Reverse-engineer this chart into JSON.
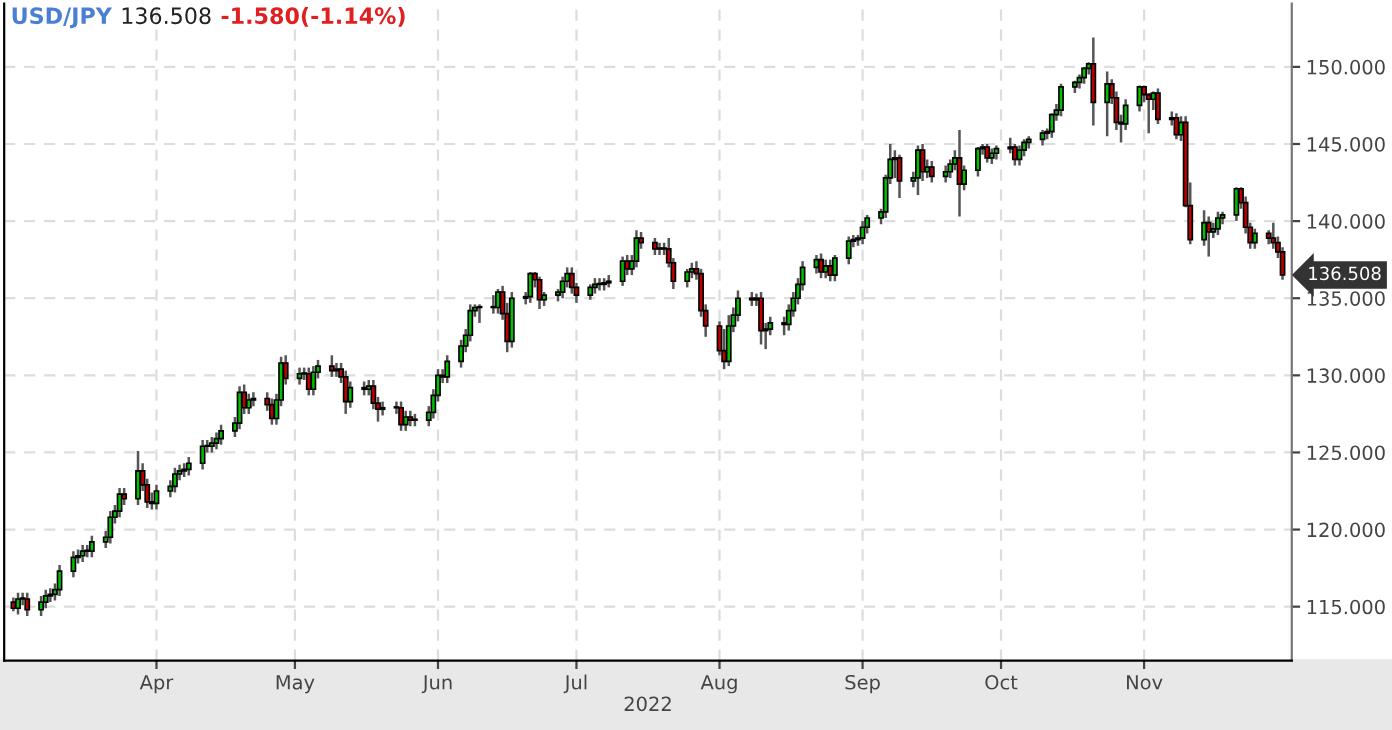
{
  "chart_data": {
    "type": "candlestick",
    "title": "USD/JPY",
    "annotations": [
      "136.508",
      "-1.580(-1.14%)",
      {
        "text": "136.508",
        "x": "2022-12-01",
        "y": 136.508
      }
    ],
    "xlabel": "2022",
    "grid": true,
    "legend": false,
    "xlim": [
      "2022-02-27",
      "2022-12-03"
    ],
    "xticks": [
      {
        "value": "2022-04-01",
        "label": "Apr"
      },
      {
        "value": "2022-05-01",
        "label": "May"
      },
      {
        "value": "2022-06-01",
        "label": "Jun"
      },
      {
        "value": "2022-07-01",
        "label": "Jul"
      },
      {
        "value": "2022-08-01",
        "label": "Aug"
      },
      {
        "value": "2022-09-01",
        "label": "Sep"
      },
      {
        "value": "2022-10-01",
        "label": "Oct"
      },
      {
        "value": "2022-11-01",
        "label": "Nov"
      }
    ],
    "ylim": [
      111.5,
      154.1
    ],
    "yticks": [
      {
        "value": 115,
        "label": "115.000"
      },
      {
        "value": 120,
        "label": "120.000"
      },
      {
        "value": 125,
        "label": "125.000"
      },
      {
        "value": 130,
        "label": "130.000"
      },
      {
        "value": 135,
        "label": "135.000"
      },
      {
        "value": 140,
        "label": "140.000"
      },
      {
        "value": 145,
        "label": "145.000"
      },
      {
        "value": 150,
        "label": "150.000"
      }
    ],
    "x": [
      "2022-03-01",
      "2022-03-02",
      "2022-03-03",
      "2022-03-04",
      "2022-03-07",
      "2022-03-08",
      "2022-03-09",
      "2022-03-10",
      "2022-03-11",
      "2022-03-14",
      "2022-03-15",
      "2022-03-16",
      "2022-03-17",
      "2022-03-18",
      "2022-03-21",
      "2022-03-22",
      "2022-03-23",
      "2022-03-24",
      "2022-03-25",
      "2022-03-28",
      "2022-03-29",
      "2022-03-30",
      "2022-03-31",
      "2022-04-01",
      "2022-04-04",
      "2022-04-05",
      "2022-04-06",
      "2022-04-07",
      "2022-04-08",
      "2022-04-11",
      "2022-04-12",
      "2022-04-13",
      "2022-04-14",
      "2022-04-15",
      "2022-04-18",
      "2022-04-19",
      "2022-04-20",
      "2022-04-21",
      "2022-04-22",
      "2022-04-25",
      "2022-04-26",
      "2022-04-27",
      "2022-04-28",
      "2022-04-29",
      "2022-05-02",
      "2022-05-03",
      "2022-05-04",
      "2022-05-05",
      "2022-05-06",
      "2022-05-09",
      "2022-05-10",
      "2022-05-11",
      "2022-05-12",
      "2022-05-13",
      "2022-05-16",
      "2022-05-17",
      "2022-05-18",
      "2022-05-19",
      "2022-05-20",
      "2022-05-23",
      "2022-05-24",
      "2022-05-25",
      "2022-05-26",
      "2022-05-27",
      "2022-05-30",
      "2022-05-31",
      "2022-06-01",
      "2022-06-02",
      "2022-06-03",
      "2022-06-06",
      "2022-06-07",
      "2022-06-08",
      "2022-06-09",
      "2022-06-10",
      "2022-06-13",
      "2022-06-14",
      "2022-06-15",
      "2022-06-16",
      "2022-06-17",
      "2022-06-20",
      "2022-06-21",
      "2022-06-22",
      "2022-06-23",
      "2022-06-24",
      "2022-06-27",
      "2022-06-28",
      "2022-06-29",
      "2022-06-30",
      "2022-07-01",
      "2022-07-04",
      "2022-07-05",
      "2022-07-06",
      "2022-07-07",
      "2022-07-08",
      "2022-07-11",
      "2022-07-12",
      "2022-07-13",
      "2022-07-14",
      "2022-07-15",
      "2022-07-18",
      "2022-07-19",
      "2022-07-20",
      "2022-07-21",
      "2022-07-22",
      "2022-07-25",
      "2022-07-26",
      "2022-07-27",
      "2022-07-28",
      "2022-07-29",
      "2022-08-01",
      "2022-08-02",
      "2022-08-03",
      "2022-08-04",
      "2022-08-05",
      "2022-08-08",
      "2022-08-09",
      "2022-08-10",
      "2022-08-11",
      "2022-08-12",
      "2022-08-15",
      "2022-08-16",
      "2022-08-17",
      "2022-08-18",
      "2022-08-19",
      "2022-08-22",
      "2022-08-23",
      "2022-08-24",
      "2022-08-25",
      "2022-08-26",
      "2022-08-29",
      "2022-08-30",
      "2022-08-31",
      "2022-09-01",
      "2022-09-02",
      "2022-09-05",
      "2022-09-06",
      "2022-09-07",
      "2022-09-08",
      "2022-09-09",
      "2022-09-12",
      "2022-09-13",
      "2022-09-14",
      "2022-09-15",
      "2022-09-16",
      "2022-09-19",
      "2022-09-20",
      "2022-09-21",
      "2022-09-22",
      "2022-09-23",
      "2022-09-26",
      "2022-09-27",
      "2022-09-28",
      "2022-09-29",
      "2022-09-30",
      "2022-10-03",
      "2022-10-04",
      "2022-10-05",
      "2022-10-06",
      "2022-10-07",
      "2022-10-10",
      "2022-10-11",
      "2022-10-12",
      "2022-10-13",
      "2022-10-14",
      "2022-10-17",
      "2022-10-18",
      "2022-10-19",
      "2022-10-20",
      "2022-10-21",
      "2022-10-24",
      "2022-10-25",
      "2022-10-26",
      "2022-10-27",
      "2022-10-28",
      "2022-10-31",
      "2022-11-01",
      "2022-11-02",
      "2022-11-03",
      "2022-11-04",
      "2022-11-07",
      "2022-11-08",
      "2022-11-09",
      "2022-11-10",
      "2022-11-11",
      "2022-11-14",
      "2022-11-15",
      "2022-11-16",
      "2022-11-17",
      "2022-11-18",
      "2022-11-21",
      "2022-11-22",
      "2022-11-23",
      "2022-11-24",
      "2022-11-25",
      "2022-11-28",
      "2022-11-29",
      "2022-11-30",
      "2022-12-01"
    ],
    "ohlc": [
      [
        115.3,
        115.6,
        114.7,
        114.9
      ],
      [
        114.9,
        115.9,
        114.5,
        115.5
      ],
      [
        115.5,
        115.9,
        115.1,
        115.5
      ],
      [
        115.5,
        115.9,
        114.4,
        114.8
      ],
      [
        114.8,
        115.7,
        114.4,
        115.3
      ],
      [
        115.3,
        116.1,
        114.9,
        115.7
      ],
      [
        115.7,
        116.2,
        115.3,
        115.8
      ],
      [
        115.8,
        116.5,
        115.4,
        116.1
      ],
      [
        116.1,
        117.7,
        115.7,
        117.3
      ],
      [
        117.3,
        118.6,
        116.9,
        118.2
      ],
      [
        118.2,
        118.7,
        117.8,
        118.3
      ],
      [
        118.3,
        119.0,
        117.9,
        118.6
      ],
      [
        118.6,
        119.0,
        118.2,
        118.6
      ],
      [
        118.6,
        119.6,
        118.2,
        119.2
      ],
      [
        119.2,
        119.9,
        118.8,
        119.5
      ],
      [
        119.5,
        121.2,
        119.1,
        120.8
      ],
      [
        120.8,
        121.6,
        120.4,
        121.2
      ],
      [
        121.2,
        122.7,
        120.8,
        122.3
      ],
      [
        122.3,
        122.7,
        121.6,
        122.0
      ],
      [
        122.0,
        125.1,
        121.6,
        123.8
      ],
      [
        123.8,
        124.3,
        122.5,
        122.9
      ],
      [
        122.9,
        123.3,
        121.4,
        121.8
      ],
      [
        121.8,
        122.4,
        121.3,
        121.7
      ],
      [
        121.7,
        122.9,
        121.3,
        122.5
      ],
      [
        122.5,
        123.2,
        122.1,
        122.8
      ],
      [
        122.8,
        124.0,
        122.4,
        123.6
      ],
      [
        123.6,
        124.2,
        123.2,
        123.8
      ],
      [
        123.8,
        124.3,
        123.4,
        123.9
      ],
      [
        123.9,
        124.7,
        123.5,
        124.3
      ],
      [
        124.3,
        125.8,
        123.9,
        125.4
      ],
      [
        125.4,
        125.8,
        125.0,
        125.4
      ],
      [
        125.4,
        126.0,
        125.0,
        125.6
      ],
      [
        125.6,
        126.3,
        125.2,
        125.9
      ],
      [
        125.9,
        126.8,
        125.5,
        126.4
      ],
      [
        126.4,
        127.3,
        126.0,
        126.9
      ],
      [
        126.9,
        129.3,
        126.5,
        128.9
      ],
      [
        128.9,
        129.4,
        127.5,
        127.9
      ],
      [
        127.9,
        128.8,
        127.5,
        128.4
      ],
      [
        128.4,
        128.9,
        128.0,
        128.5
      ],
      [
        128.5,
        128.9,
        127.7,
        128.1
      ],
      [
        128.1,
        128.5,
        126.8,
        127.2
      ],
      [
        127.2,
        128.8,
        126.8,
        128.4
      ],
      [
        128.4,
        131.2,
        128.0,
        130.8
      ],
      [
        130.8,
        131.3,
        129.4,
        129.8
      ],
      [
        129.8,
        130.5,
        129.4,
        130.1
      ],
      [
        130.1,
        130.5,
        129.7,
        130.1
      ],
      [
        130.1,
        130.5,
        128.7,
        129.1
      ],
      [
        129.1,
        130.6,
        128.7,
        130.2
      ],
      [
        130.2,
        131.0,
        129.8,
        130.6
      ],
      [
        130.6,
        131.3,
        129.9,
        130.3
      ],
      [
        130.3,
        130.8,
        129.9,
        130.4
      ],
      [
        130.4,
        130.8,
        129.5,
        129.9
      ],
      [
        129.9,
        130.3,
        127.5,
        128.3
      ],
      [
        128.3,
        129.6,
        127.9,
        129.2
      ],
      [
        129.2,
        129.6,
        128.7,
        129.1
      ],
      [
        129.1,
        129.7,
        128.7,
        129.3
      ],
      [
        129.3,
        129.7,
        127.8,
        128.2
      ],
      [
        128.2,
        128.6,
        127.0,
        127.8
      ],
      [
        127.8,
        128.3,
        127.4,
        127.9
      ],
      [
        127.9,
        128.3,
        127.5,
        127.9
      ],
      [
        127.9,
        128.3,
        126.4,
        126.8
      ],
      [
        126.8,
        127.7,
        126.4,
        127.3
      ],
      [
        127.3,
        127.7,
        126.7,
        127.1
      ],
      [
        127.1,
        127.5,
        126.7,
        127.1
      ],
      [
        127.1,
        128.0,
        126.7,
        127.6
      ],
      [
        127.6,
        129.1,
        127.2,
        128.7
      ],
      [
        128.7,
        130.4,
        128.3,
        130.0
      ],
      [
        130.0,
        130.4,
        129.5,
        129.9
      ],
      [
        129.9,
        131.3,
        129.5,
        130.9
      ],
      [
        130.9,
        132.3,
        130.5,
        131.9
      ],
      [
        131.9,
        133.0,
        131.5,
        132.6
      ],
      [
        132.6,
        134.6,
        132.2,
        134.2
      ],
      [
        134.2,
        134.6,
        133.8,
        134.4
      ],
      [
        134.4,
        134.6,
        133.4,
        134.4
      ],
      [
        134.4,
        135.2,
        134.0,
        134.4
      ],
      [
        134.4,
        135.6,
        134.0,
        135.4
      ],
      [
        135.4,
        135.8,
        133.6,
        134.0
      ],
      [
        134.0,
        134.7,
        131.5,
        132.2
      ],
      [
        132.2,
        135.4,
        131.8,
        135.0
      ],
      [
        135.0,
        135.4,
        134.6,
        135.1
      ],
      [
        135.1,
        136.7,
        134.7,
        136.6
      ],
      [
        136.6,
        136.7,
        135.7,
        136.2
      ],
      [
        136.2,
        136.4,
        134.3,
        134.9
      ],
      [
        134.9,
        135.4,
        134.5,
        135.2
      ],
      [
        135.2,
        135.6,
        134.8,
        135.4
      ],
      [
        135.4,
        136.4,
        135.0,
        136.1
      ],
      [
        136.1,
        137.0,
        135.7,
        136.6
      ],
      [
        136.6,
        137.0,
        135.3,
        135.7
      ],
      [
        135.7,
        136.0,
        134.7,
        135.2
      ],
      [
        135.2,
        135.9,
        134.9,
        135.7
      ],
      [
        135.7,
        136.3,
        135.3,
        135.9
      ],
      [
        135.9,
        136.3,
        135.5,
        135.9
      ],
      [
        135.9,
        136.3,
        135.5,
        136.0
      ],
      [
        136.0,
        136.5,
        135.7,
        136.1
      ],
      [
        136.1,
        137.7,
        135.8,
        137.4
      ],
      [
        137.4,
        137.8,
        136.5,
        136.9
      ],
      [
        136.9,
        137.8,
        136.5,
        137.4
      ],
      [
        137.4,
        139.4,
        137.0,
        138.9
      ],
      [
        138.9,
        139.3,
        138.2,
        138.6
      ],
      [
        138.6,
        138.9,
        137.8,
        138.2
      ],
      [
        138.2,
        138.6,
        137.8,
        138.2
      ],
      [
        138.2,
        138.6,
        137.8,
        138.2
      ],
      [
        138.2,
        138.9,
        137.0,
        137.3
      ],
      [
        137.3,
        137.6,
        135.6,
        136.1
      ],
      [
        136.1,
        136.9,
        135.7,
        136.7
      ],
      [
        136.7,
        137.3,
        136.3,
        136.9
      ],
      [
        136.9,
        137.4,
        136.2,
        136.6
      ],
      [
        136.6,
        136.9,
        133.8,
        134.2
      ],
      [
        134.2,
        134.6,
        132.5,
        133.2
      ],
      [
        133.2,
        133.5,
        131.3,
        131.6
      ],
      [
        131.6,
        133.0,
        130.4,
        130.9
      ],
      [
        130.9,
        133.9,
        130.6,
        133.2
      ],
      [
        133.2,
        134.4,
        132.8,
        133.9
      ],
      [
        133.9,
        135.5,
        133.5,
        135.0
      ],
      [
        135.0,
        135.4,
        134.5,
        134.9
      ],
      [
        134.9,
        135.3,
        134.5,
        135.0
      ],
      [
        135.0,
        135.4,
        132.0,
        132.9
      ],
      [
        132.9,
        133.4,
        131.7,
        133.0
      ],
      [
        133.0,
        133.8,
        132.6,
        133.4
      ],
      [
        133.4,
        133.8,
        132.6,
        133.3
      ],
      [
        133.3,
        134.6,
        132.9,
        134.2
      ],
      [
        134.2,
        135.4,
        133.8,
        135.0
      ],
      [
        135.0,
        136.3,
        134.6,
        135.9
      ],
      [
        135.9,
        137.4,
        135.5,
        137.0
      ],
      [
        137.0,
        137.8,
        136.6,
        137.5
      ],
      [
        137.5,
        137.9,
        136.3,
        136.7
      ],
      [
        136.7,
        137.5,
        136.3,
        137.1
      ],
      [
        137.1,
        137.5,
        136.1,
        136.5
      ],
      [
        136.5,
        137.8,
        136.1,
        137.6
      ],
      [
        137.6,
        139.0,
        137.2,
        138.7
      ],
      [
        138.7,
        139.1,
        138.3,
        138.8
      ],
      [
        138.8,
        139.1,
        138.4,
        138.9
      ],
      [
        138.9,
        140.0,
        138.5,
        139.6
      ],
      [
        139.6,
        140.4,
        139.2,
        140.2
      ],
      [
        140.2,
        140.8,
        139.8,
        140.6
      ],
      [
        140.6,
        143.0,
        140.2,
        142.8
      ],
      [
        142.8,
        145.0,
        142.4,
        144.0
      ],
      [
        144.0,
        144.6,
        142.8,
        144.1
      ],
      [
        144.1,
        144.3,
        141.5,
        142.6
      ],
      [
        142.6,
        143.2,
        142.2,
        142.8
      ],
      [
        142.8,
        144.9,
        141.7,
        144.6
      ],
      [
        144.6,
        145.0,
        142.6,
        143.2
      ],
      [
        143.2,
        144.0,
        142.8,
        143.5
      ],
      [
        143.5,
        143.9,
        142.5,
        142.9
      ],
      [
        142.9,
        143.6,
        142.5,
        143.2
      ],
      [
        143.2,
        144.0,
        142.8,
        143.7
      ],
      [
        143.7,
        144.6,
        143.3,
        144.1
      ],
      [
        144.1,
        145.9,
        140.3,
        142.4
      ],
      [
        142.4,
        143.6,
        142.0,
        143.3
      ],
      [
        143.3,
        144.8,
        142.9,
        144.7
      ],
      [
        144.7,
        145.0,
        144.3,
        144.8
      ],
      [
        144.8,
        145.0,
        143.8,
        144.1
      ],
      [
        144.1,
        144.7,
        143.7,
        144.4
      ],
      [
        144.4,
        144.9,
        144.0,
        144.7
      ],
      [
        144.7,
        145.4,
        144.4,
        144.8
      ],
      [
        144.8,
        145.0,
        143.6,
        144.0
      ],
      [
        144.0,
        144.9,
        143.6,
        144.6
      ],
      [
        144.6,
        145.3,
        144.2,
        145.1
      ],
      [
        145.1,
        145.5,
        144.7,
        145.3
      ],
      [
        145.3,
        145.9,
        144.9,
        145.7
      ],
      [
        145.7,
        146.0,
        145.3,
        145.8
      ],
      [
        145.8,
        147.0,
        145.4,
        146.9
      ],
      [
        146.9,
        147.6,
        146.5,
        147.2
      ],
      [
        147.2,
        148.9,
        146.8,
        148.7
      ],
      [
        148.7,
        149.1,
        148.3,
        149.0
      ],
      [
        149.0,
        149.5,
        148.6,
        149.3
      ],
      [
        149.3,
        150.0,
        148.9,
        149.9
      ],
      [
        149.9,
        150.3,
        149.5,
        150.2
      ],
      [
        150.2,
        151.9,
        146.2,
        147.7
      ],
      [
        147.7,
        149.7,
        145.5,
        148.9
      ],
      [
        148.9,
        149.2,
        147.6,
        148.0
      ],
      [
        148.0,
        148.4,
        145.9,
        146.4
      ],
      [
        146.4,
        146.9,
        145.1,
        146.3
      ],
      [
        146.3,
        147.9,
        145.9,
        147.5
      ],
      [
        147.5,
        148.8,
        147.1,
        148.7
      ],
      [
        148.7,
        148.8,
        147.7,
        148.2
      ],
      [
        148.2,
        148.3,
        145.7,
        147.9
      ],
      [
        147.9,
        148.4,
        147.2,
        148.3
      ],
      [
        148.3,
        148.6,
        146.3,
        146.6
      ],
      [
        146.6,
        147.1,
        146.2,
        146.7
      ],
      [
        146.7,
        147.0,
        145.3,
        145.6
      ],
      [
        145.6,
        146.8,
        145.2,
        146.4
      ],
      [
        146.4,
        146.8,
        140.9,
        141.0
      ],
      [
        141.0,
        142.5,
        138.5,
        138.8
      ],
      [
        138.8,
        140.7,
        138.4,
        139.9
      ],
      [
        139.9,
        140.3,
        137.7,
        139.3
      ],
      [
        139.3,
        139.9,
        138.9,
        139.5
      ],
      [
        139.5,
        140.6,
        139.1,
        140.2
      ],
      [
        140.2,
        140.6,
        139.8,
        140.4
      ],
      [
        140.4,
        142.2,
        140.0,
        142.1
      ],
      [
        142.1,
        142.2,
        140.8,
        141.2
      ],
      [
        141.2,
        141.6,
        139.2,
        139.6
      ],
      [
        139.6,
        139.9,
        138.2,
        138.6
      ],
      [
        138.6,
        139.5,
        138.2,
        139.2
      ],
      [
        139.2,
        139.4,
        138.5,
        138.9
      ],
      [
        138.9,
        139.9,
        138.2,
        138.6
      ],
      [
        138.6,
        139.0,
        137.6,
        138.0
      ],
      [
        138.0,
        138.3,
        136.2,
        136.508
      ]
    ]
  }
}
